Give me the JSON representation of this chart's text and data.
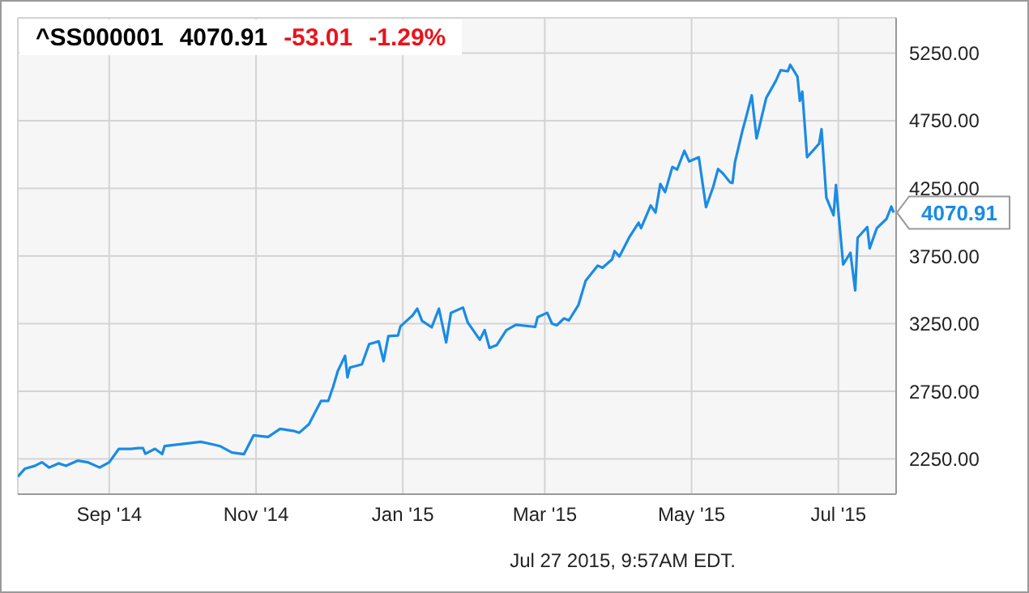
{
  "chart_data": {
    "type": "line",
    "title": "^SS000001",
    "subtitle": "4070.91",
    "annotations": [
      "-53.01",
      "-1.29%",
      "Jul 27 2015, 9:57AM EDT."
    ],
    "x": [
      "2014-07-25",
      "2014-07-28",
      "2014-08-01",
      "2014-08-04",
      "2014-08-07",
      "2014-08-11",
      "2014-08-14",
      "2014-08-19",
      "2014-08-23",
      "2014-08-28",
      "2014-09-01",
      "2014-09-05",
      "2014-09-10",
      "2014-09-13",
      "2014-09-15",
      "2014-09-16",
      "2014-09-20",
      "2014-09-23",
      "2014-09-24",
      "2014-10-09",
      "2014-10-15",
      "2014-10-17",
      "2014-10-22",
      "2014-10-27",
      "2014-10-31",
      "2014-11-06",
      "2014-11-11",
      "2014-11-17",
      "2014-11-19",
      "2014-11-23",
      "2014-11-28",
      "2014-12-01",
      "2014-12-03",
      "2014-12-05",
      "2014-12-08",
      "2014-12-09",
      "2014-12-10",
      "2014-12-15",
      "2014-12-18",
      "2014-12-22",
      "2014-12-24",
      "2014-12-26",
      "2014-12-30",
      "2014-12-31",
      "2015-01-05",
      "2015-01-07",
      "2015-01-09",
      "2015-01-13",
      "2015-01-16",
      "2015-01-19",
      "2015-01-21",
      "2015-01-26",
      "2015-01-28",
      "2015-02-02",
      "2015-02-04",
      "2015-02-06",
      "2015-02-09",
      "2015-02-13",
      "2015-02-17",
      "2015-02-25",
      "2015-02-26",
      "2015-03-02",
      "2015-03-04",
      "2015-03-06",
      "2015-03-09",
      "2015-03-11",
      "2015-03-15",
      "2015-03-18",
      "2015-03-23",
      "2015-03-25",
      "2015-03-29",
      "2015-03-30",
      "2015-04-01",
      "2015-04-05",
      "2015-04-09",
      "2015-04-10",
      "2015-04-14",
      "2015-04-16",
      "2015-04-18",
      "2015-04-20",
      "2015-04-23",
      "2015-04-25",
      "2015-04-28",
      "2015-04-30",
      "2015-05-04",
      "2015-05-07",
      "2015-05-10",
      "2015-05-12",
      "2015-05-14",
      "2015-05-17",
      "2015-05-18",
      "2015-05-19",
      "2015-05-22",
      "2015-05-24",
      "2015-05-26",
      "2015-05-28",
      "2015-06-01",
      "2015-06-05",
      "2015-06-07",
      "2015-06-10",
      "2015-06-11",
      "2015-06-14",
      "2015-06-15",
      "2015-06-16",
      "2015-06-18",
      "2015-06-23",
      "2015-06-24",
      "2015-06-26",
      "2015-06-29",
      "2015-06-30",
      "2015-07-03",
      "2015-07-06",
      "2015-07-08",
      "2015-07-09",
      "2015-07-13",
      "2015-07-14",
      "2015-07-17",
      "2015-07-21",
      "2015-07-23",
      "2015-07-24"
    ],
    "series": [
      {
        "color": "#1a8be6",
        "values": [
          2119,
          2179,
          2199,
          2226,
          2187,
          2218,
          2199,
          2238,
          2226,
          2187,
          2226,
          2325,
          2325,
          2330,
          2330,
          2289,
          2325,
          2286,
          2345,
          2377,
          2354,
          2345,
          2298,
          2286,
          2425,
          2413,
          2473,
          2456,
          2444,
          2508,
          2679,
          2679,
          2782,
          2901,
          3012,
          2853,
          2925,
          2949,
          3099,
          3119,
          2973,
          3158,
          3163,
          3230,
          3310,
          3361,
          3270,
          3223,
          3361,
          3111,
          3330,
          3369,
          3258,
          3131,
          3202,
          3071,
          3091,
          3202,
          3242,
          3226,
          3298,
          3330,
          3250,
          3238,
          3289,
          3274,
          3389,
          3568,
          3679,
          3663,
          3726,
          3786,
          3746,
          3885,
          3996,
          3956,
          4123,
          4071,
          4282,
          4222,
          4408,
          4389,
          4528,
          4449,
          4480,
          4111,
          4262,
          4393,
          4361,
          4294,
          4290,
          4440,
          4667,
          4798,
          4937,
          4619,
          4917,
          5044,
          5123,
          5115,
          5163,
          5075,
          4896,
          4964,
          4480,
          4580,
          4687,
          4182,
          4051,
          4274,
          3687,
          3774,
          3496,
          3885,
          3964,
          3806,
          3956,
          4024,
          4115,
          4070.91
        ],
        "value_labels": [
          null,
          null,
          null,
          null,
          null,
          null,
          null,
          null,
          null,
          null,
          null,
          null,
          null,
          null,
          null,
          null,
          null,
          null,
          null,
          null,
          null,
          null,
          null,
          null,
          null,
          null,
          null,
          null,
          null,
          null,
          null,
          null,
          null,
          null,
          null,
          null,
          null,
          null,
          null,
          null,
          null,
          null,
          null,
          null,
          null,
          null,
          null,
          null,
          null,
          null,
          null,
          null,
          null,
          null,
          null,
          null,
          null,
          null,
          null,
          null,
          null,
          null,
          null,
          null,
          null,
          null,
          null,
          null,
          null,
          null,
          null,
          null,
          null,
          null,
          null,
          null,
          null,
          null,
          null,
          null,
          null,
          null,
          null,
          null,
          null,
          null,
          null,
          null,
          null,
          null,
          null,
          null,
          null,
          null,
          null,
          null,
          null,
          null,
          null,
          null,
          null,
          null,
          null,
          null,
          null,
          null,
          null,
          null,
          null,
          null,
          null,
          null,
          null,
          null,
          null,
          null,
          null,
          null,
          null,
          "4070.91"
        ]
      }
    ],
    "xlim": [
      "2014-07-25",
      "2015-07-25"
    ],
    "xticks": [
      {
        "value": "2014-09-01",
        "label": "Sep '14"
      },
      {
        "value": "2014-11-01",
        "label": "Nov '14"
      },
      {
        "value": "2015-01-01",
        "label": "Jan '15"
      },
      {
        "value": "2015-03-01",
        "label": "Mar '15"
      },
      {
        "value": "2015-05-01",
        "label": "May '15"
      },
      {
        "value": "2015-07-01",
        "label": "Jul '15"
      }
    ],
    "ylim": [
      1990,
      5510
    ],
    "yticks": [
      {
        "value": 2250,
        "label": "2250.00"
      },
      {
        "value": 2750,
        "label": "2750.00"
      },
      {
        "value": 3250,
        "label": "3250.00"
      },
      {
        "value": 3750,
        "label": "3750.00"
      },
      {
        "value": 4250,
        "label": "4250.00"
      },
      {
        "value": 4750,
        "label": "4750.00"
      },
      {
        "value": 5250,
        "label": "5250.00"
      }
    ],
    "grid": true,
    "marker": "none",
    "line_style": "solid"
  }
}
